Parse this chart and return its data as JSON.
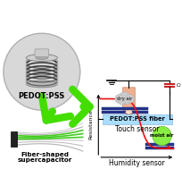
{
  "bg_color": "#ffffff",
  "center_label": "PEDOT:PSS",
  "arrow_color": "#44dd00",
  "top_right_label": "Touch sensor",
  "bottom_left_label1": "Fiber-shaped",
  "bottom_left_label2": "supercapacitor",
  "bottom_right_label": "Humidity sensor",
  "pedot_pss_fiber_label": "PEDOT:PSS fiber",
  "resistance_label": "Resistance",
  "dry_air_label": "dry air",
  "moist_air_label": "moist air",
  "humidity_curve_color": "#ee1111",
  "touch_bar_color": "#aaddff",
  "humidity_bar_color": "#223388",
  "spool_bg": "#d8d8d8",
  "spool_edge": "#b0b0b0",
  "coil_color": "#555555",
  "cap_color": "#cccccc",
  "finger_color": "#f0b090",
  "finger_edge": "#cc8866",
  "cloud_color": "#cccccc",
  "moist_color": "#88ee44",
  "fiber_green": "#44cc22",
  "fiber_dark": "#888888",
  "wire_color": "#cc2222"
}
